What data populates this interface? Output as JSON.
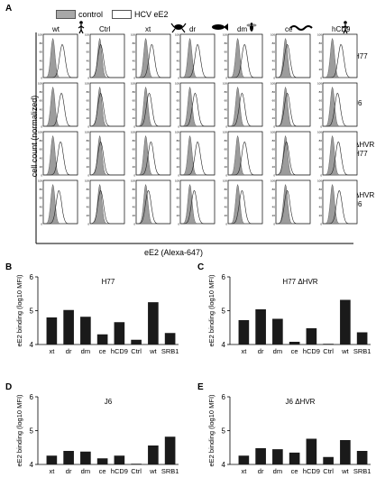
{
  "panelA": {
    "letter": "A",
    "legend": {
      "control": "control",
      "hcv": "HCV eE2"
    },
    "columns": [
      "wt",
      "Ctrl",
      "xt",
      "dr",
      "dm",
      "ce",
      "hCD9"
    ],
    "rows": [
      {
        "line1": "H77",
        "line2": ""
      },
      {
        "line1": "J6",
        "line2": ""
      },
      {
        "line1": "ΔHVR",
        "line2": "H77"
      },
      {
        "line1": "ΔHVR",
        "line2": "J6"
      }
    ],
    "y_axis_label": "cell count (normalized)",
    "x_axis_label": "eE2 (Alexa-647)",
    "histogram_ticks": [
      "0",
      "20",
      "40",
      "60",
      "80",
      "100"
    ]
  },
  "chart_data": [
    {
      "panel": "B",
      "type": "bar",
      "title": "H77",
      "ylabel": "eE2 binding (log10 MFI)",
      "categories": [
        "xt",
        "dr",
        "dm",
        "ce",
        "hCD9",
        "Ctrl",
        "wt",
        "SRB1"
      ],
      "values": [
        4.8,
        5.02,
        4.82,
        4.3,
        4.66,
        4.14,
        5.25,
        4.34
      ],
      "ylim": [
        4,
        6
      ],
      "yticks": [
        4,
        5,
        6
      ]
    },
    {
      "panel": "C",
      "type": "bar",
      "title": "H77 ΔHVR",
      "ylabel": "eE2 binding (log10 MFI)",
      "categories": [
        "xt",
        "dr",
        "dm",
        "ce",
        "hCD9",
        "Ctrl",
        "wt",
        "SRB1"
      ],
      "values": [
        4.72,
        5.04,
        4.76,
        4.08,
        4.48,
        4.02,
        5.32,
        4.36
      ],
      "ylim": [
        4,
        6
      ],
      "yticks": [
        4,
        5,
        6
      ]
    },
    {
      "panel": "D",
      "type": "bar",
      "title": "J6",
      "ylabel": "eE2 binding (log10 MFI)",
      "categories": [
        "xt",
        "dr",
        "dm",
        "ce",
        "hCD9",
        "Ctrl",
        "wt",
        "SRB1"
      ],
      "values": [
        4.26,
        4.4,
        4.38,
        4.18,
        4.26,
        4.02,
        4.56,
        4.82
      ],
      "ylim": [
        4,
        6
      ],
      "yticks": [
        4,
        5,
        6
      ]
    },
    {
      "panel": "E",
      "type": "bar",
      "title": "J6 ΔHVR",
      "ylabel": "eE2 binding (log10 MFI)",
      "categories": [
        "xt",
        "dr",
        "dm",
        "ce",
        "hCD9",
        "Ctrl",
        "wt",
        "SRB1"
      ],
      "values": [
        4.26,
        4.48,
        4.45,
        4.35,
        4.76,
        4.22,
        4.72,
        4.4
      ],
      "ylim": [
        4,
        6
      ],
      "yticks": [
        4,
        5,
        6
      ]
    }
  ]
}
